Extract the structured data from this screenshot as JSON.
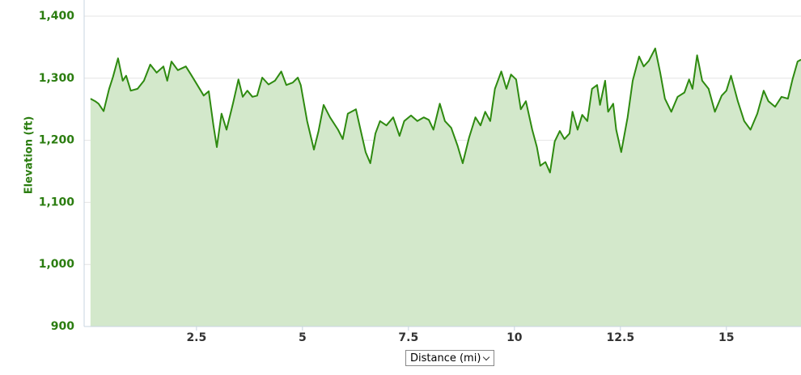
{
  "chart_data": {
    "type": "area",
    "y_label": "Elevation (ft)",
    "x_selector": "Distance (mi)",
    "color": "#2e8a10",
    "fill_color": "#d3e8cb",
    "grid": true,
    "xlim": [
      -0.15,
      16.76
    ],
    "xticks": [
      2.5,
      5,
      7.5,
      10,
      12.5,
      15
    ],
    "ylim": [
      900,
      1400
    ],
    "yticks": [
      {
        "value": 900,
        "label": "900"
      },
      {
        "value": 1000,
        "label": "1,000"
      },
      {
        "value": 1100,
        "label": "1,100"
      },
      {
        "value": 1200,
        "label": "1,200"
      },
      {
        "value": 1300,
        "label": "1,300"
      },
      {
        "value": 1400,
        "label": "1,400"
      }
    ],
    "x": [
      0,
      0.11,
      0.19,
      0.31,
      0.44,
      0.53,
      0.65,
      0.76,
      0.84,
      0.95,
      1.11,
      1.26,
      1.41,
      1.56,
      1.72,
      1.81,
      1.91,
      2.06,
      2.25,
      2.37,
      2.52,
      2.67,
      2.79,
      2.9,
      2.98,
      3.09,
      3.21,
      3.36,
      3.49,
      3.59,
      3.7,
      3.82,
      3.93,
      4.05,
      4.2,
      4.35,
      4.5,
      4.62,
      4.77,
      4.89,
      4.96,
      5.11,
      5.27,
      5.38,
      5.5,
      5.65,
      5.84,
      5.95,
      6.07,
      6.26,
      6.37,
      6.49,
      6.6,
      6.72,
      6.83,
      6.98,
      7.14,
      7.29,
      7.4,
      7.56,
      7.71,
      7.86,
      7.98,
      8.09,
      8.24,
      8.36,
      8.51,
      8.66,
      8.78,
      8.93,
      9.08,
      9.2,
      9.31,
      9.43,
      9.54,
      9.69,
      9.81,
      9.92,
      10.04,
      10.15,
      10.27,
      10.42,
      10.53,
      10.61,
      10.73,
      10.84,
      10.95,
      11.07,
      11.18,
      11.3,
      11.37,
      11.49,
      11.6,
      11.72,
      11.83,
      11.95,
      12.02,
      12.14,
      12.21,
      12.33,
      12.4,
      12.52,
      12.67,
      12.79,
      12.94,
      13.05,
      13.17,
      13.32,
      13.44,
      13.55,
      13.7,
      13.85,
      14.01,
      14.12,
      14.2,
      14.31,
      14.43,
      14.58,
      14.73,
      14.89,
      15.0,
      15.11,
      15.27,
      15.42,
      15.57,
      15.73,
      15.88,
      15.99,
      16.15,
      16.3,
      16.45,
      16.56,
      16.68,
      16.76
    ],
    "values": [
      1267,
      1263,
      1259,
      1247,
      1283,
      1302,
      1332,
      1296,
      1304,
      1280,
      1283,
      1296,
      1322,
      1309,
      1319,
      1296,
      1327,
      1313,
      1319,
      1306,
      1289,
      1272,
      1279,
      1224,
      1189,
      1243,
      1217,
      1259,
      1298,
      1270,
      1280,
      1270,
      1272,
      1301,
      1290,
      1296,
      1311,
      1289,
      1293,
      1301,
      1289,
      1231,
      1185,
      1215,
      1257,
      1237,
      1217,
      1202,
      1243,
      1250,
      1217,
      1181,
      1163,
      1211,
      1231,
      1224,
      1237,
      1207,
      1231,
      1240,
      1231,
      1237,
      1233,
      1217,
      1259,
      1231,
      1220,
      1191,
      1163,
      1204,
      1237,
      1224,
      1246,
      1231,
      1283,
      1311,
      1283,
      1306,
      1298,
      1250,
      1263,
      1217,
      1189,
      1159,
      1165,
      1148,
      1198,
      1215,
      1202,
      1211,
      1246,
      1217,
      1241,
      1231,
      1283,
      1289,
      1257,
      1296,
      1246,
      1259,
      1217,
      1181,
      1237,
      1296,
      1335,
      1319,
      1328,
      1348,
      1309,
      1267,
      1246,
      1270,
      1277,
      1298,
      1283,
      1337,
      1296,
      1283,
      1246,
      1272,
      1280,
      1304,
      1263,
      1231,
      1217,
      1243,
      1280,
      1263,
      1254,
      1270,
      1267,
      1298,
      1327,
      1330
    ]
  }
}
